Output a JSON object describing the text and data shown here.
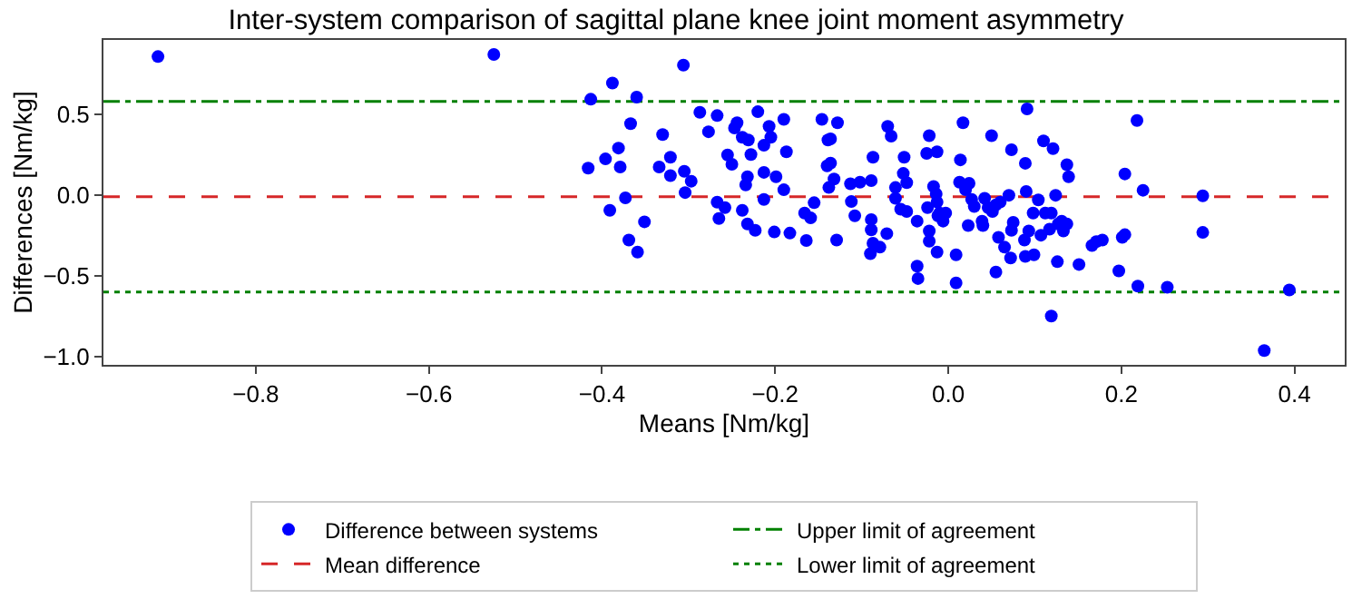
{
  "chart_data": {
    "type": "scatter",
    "title": "Inter-system comparison of sagittal plane knee joint moment asymmetry",
    "xlabel": "Means [Nm/kg]",
    "ylabel": "Differences [Nm/kg]",
    "xlim": [
      -0.976,
      0.458
    ],
    "ylim": [
      -1.05,
      0.96
    ],
    "xticks": [
      {
        "value": -0.8,
        "label": "−0.8"
      },
      {
        "value": -0.6,
        "label": "−0.6"
      },
      {
        "value": -0.4,
        "label": "−0.4"
      },
      {
        "value": -0.2,
        "label": "−0.2"
      },
      {
        "value": 0,
        "label": "0.0"
      },
      {
        "value": 0.2,
        "label": "0.2"
      },
      {
        "value": 0.4,
        "label": "0.4"
      }
    ],
    "yticks": [
      {
        "value": -1,
        "label": "−1.0"
      },
      {
        "value": -0.5,
        "label": "−0.5"
      },
      {
        "value": 0,
        "label": "0.0"
      },
      {
        "value": 0.5,
        "label": "0.5"
      }
    ],
    "grid": false,
    "legend": "bottom",
    "marker": "circle",
    "series": [
      {
        "name": "Difference between systems",
        "color": "#0000ff",
        "x": [
          -0.913,
          -0.525,
          -0.306,
          -0.388,
          -0.413,
          -0.36,
          -0.367,
          -0.381,
          -0.396,
          -0.416,
          -0.379,
          -0.373,
          -0.391,
          -0.351,
          -0.369,
          -0.359,
          -0.33,
          -0.334,
          -0.321,
          -0.321,
          -0.305,
          -0.297,
          -0.304,
          -0.287,
          -0.267,
          -0.277,
          -0.244,
          -0.247,
          -0.238,
          -0.231,
          -0.22,
          -0.207,
          -0.205,
          -0.213,
          -0.19,
          -0.187,
          -0.228,
          -0.255,
          -0.25,
          -0.232,
          -0.234,
          -0.213,
          -0.199,
          -0.19,
          -0.267,
          -0.258,
          -0.265,
          -0.238,
          -0.213,
          -0.232,
          -0.223,
          -0.201,
          -0.183,
          -0.164,
          -0.166,
          -0.159,
          -0.155,
          -0.146,
          -0.128,
          -0.136,
          -0.139,
          -0.14,
          -0.136,
          -0.132,
          -0.138,
          -0.129,
          -0.112,
          -0.113,
          -0.102,
          -0.089,
          -0.087,
          -0.108,
          -0.089,
          -0.089,
          -0.071,
          -0.087,
          -0.079,
          -0.09,
          -0.07,
          -0.066,
          -0.051,
          -0.052,
          -0.048,
          -0.061,
          -0.061,
          -0.055,
          -0.048,
          -0.036,
          -0.022,
          -0.025,
          -0.013,
          -0.024,
          -0.022,
          -0.022,
          -0.012,
          -0.013,
          -0.036,
          -0.035,
          0.091,
          0.017,
          0.05,
          0.073,
          0.11,
          0.121,
          0.089,
          0.137,
          0.139,
          0.014,
          0.218,
          0.204,
          0.225,
          0.294,
          0.294,
          0.204,
          0.201,
          0.178,
          0.171,
          0.166,
          0.151,
          0.126,
          0.119,
          0.197,
          0.219,
          0.253,
          0.394,
          0.365,
          0.055,
          0.009,
          0.009,
          -0.017,
          -0.014,
          -0.013,
          -0.01,
          -0.003,
          -0.006,
          0.013,
          0.024,
          0.02,
          0.027,
          0.03,
          0.023,
          0.042,
          0.039,
          0.04,
          0.046,
          0.051,
          0.055,
          0.06,
          0.07,
          0.058,
          0.065,
          0.072,
          0.073,
          0.075,
          0.09,
          0.098,
          0.093,
          0.088,
          0.089,
          0.099,
          0.107,
          0.104,
          0.112,
          0.119,
          0.124,
          0.117,
          0.127,
          0.131,
          0.137,
          0.133
        ],
        "values": [
          0.857,
          0.87,
          0.804,
          0.693,
          0.593,
          0.606,
          0.442,
          0.291,
          0.224,
          0.167,
          0.174,
          -0.017,
          -0.094,
          -0.165,
          -0.278,
          -0.352,
          0.375,
          0.174,
          0.234,
          0.121,
          0.147,
          0.086,
          0.016,
          0.512,
          0.492,
          0.392,
          0.448,
          0.415,
          0.358,
          0.341,
          0.516,
          0.425,
          0.358,
          0.308,
          0.469,
          0.268,
          0.251,
          0.248,
          0.191,
          0.114,
          0.063,
          0.141,
          0.114,
          0.033,
          -0.044,
          -0.077,
          -0.145,
          -0.094,
          -0.027,
          -0.178,
          -0.218,
          -0.228,
          -0.235,
          -0.281,
          -0.111,
          -0.141,
          -0.047,
          0.469,
          0.448,
          0.348,
          0.341,
          0.181,
          0.198,
          0.1,
          0.047,
          -0.278,
          -0.04,
          0.07,
          0.08,
          0.09,
          0.234,
          -0.128,
          -0.151,
          -0.215,
          -0.238,
          -0.298,
          -0.322,
          -0.362,
          0.425,
          0.365,
          0.234,
          0.134,
          0.077,
          0.047,
          -0.02,
          -0.087,
          -0.101,
          -0.161,
          0.368,
          0.258,
          0.268,
          -0.077,
          -0.222,
          -0.285,
          -0.128,
          -0.352,
          -0.439,
          -0.516,
          0.533,
          0.448,
          0.368,
          0.281,
          0.335,
          0.288,
          0.197,
          0.188,
          0.114,
          0.218,
          0.462,
          0.131,
          0.03,
          -0.004,
          -0.231,
          -0.245,
          -0.261,
          -0.278,
          -0.288,
          -0.312,
          -0.429,
          -0.412,
          -0.748,
          -0.469,
          -0.563,
          -0.57,
          -0.587,
          -0.962,
          -0.476,
          -0.543,
          -0.369,
          0.053,
          0.007,
          -0.043,
          -0.111,
          -0.111,
          -0.161,
          0.08,
          0.073,
          0.033,
          -0.027,
          -0.07,
          -0.188,
          -0.02,
          -0.161,
          -0.188,
          -0.077,
          -0.101,
          -0.06,
          -0.043,
          -0.001,
          -0.261,
          -0.322,
          -0.389,
          -0.218,
          -0.168,
          0.023,
          -0.111,
          -0.222,
          -0.278,
          -0.379,
          -0.369,
          -0.248,
          -0.03,
          -0.111,
          -0.111,
          -0.001,
          -0.211,
          -0.178,
          -0.161,
          -0.178,
          -0.222
        ]
      }
    ],
    "ref_lines": [
      {
        "axis": "y",
        "value": 0.58,
        "label": "Upper limit of agreement",
        "color": "#008000",
        "line_style": "dashdot"
      },
      {
        "axis": "y",
        "value": -0.01,
        "label": "Mean difference",
        "color": "#d62728",
        "line_style": "dashed"
      },
      {
        "axis": "y",
        "value": -0.6,
        "label": "Lower limit of agreement",
        "color": "#008000",
        "line_style": "dotted"
      }
    ]
  }
}
